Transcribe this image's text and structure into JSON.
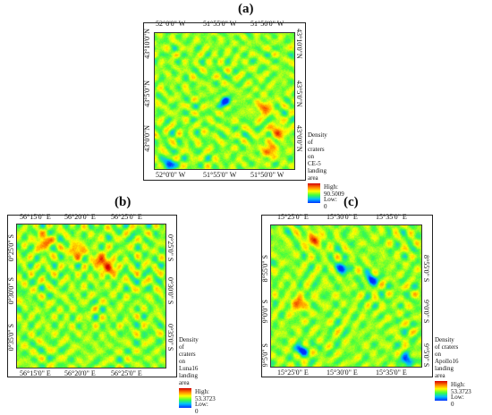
{
  "panels": [
    {
      "label": "(a)",
      "top_ticks": [
        "52°0'0\" W",
        "51°55'0\" W",
        "51°50'0\" W"
      ],
      "bottom_ticks": [
        "52°0'0\" W",
        "51°55'0\" W",
        "51°50'0\" W"
      ],
      "right_ticks": [
        "43°10'0\"N",
        "43°5'0\"N",
        "43°0'0\"N"
      ],
      "left_ticks": [
        "43°10'0\"N",
        "43°5'0\"N",
        "43°0'0\"N"
      ],
      "legend": {
        "title_line1": "Density of craters on",
        "title_line2": "CE-5 landing area",
        "high": "High: 90.5009",
        "low": "Low: 0"
      },
      "seed": 11,
      "hotspots": [
        {
          "u": 0.88,
          "v": 0.72
        },
        {
          "u": 0.82,
          "v": 0.86
        },
        {
          "u": 0.78,
          "v": 0.55
        }
      ],
      "bluespots": [
        {
          "u": 0.1,
          "v": 0.96
        },
        {
          "u": 0.5,
          "v": 0.5
        }
      ]
    },
    {
      "label": "(b)",
      "top_ticks": [
        "56°15'0\" E",
        "56°20'0\" E",
        "56°25'0\" E"
      ],
      "bottom_ticks": [
        "56°15'0\" E",
        "56°20'0\" E",
        "56°25'0\" E"
      ],
      "right_ticks": [
        "0°25'0\" S",
        "0°30'0\" S",
        "0°35'0\" S"
      ],
      "left_ticks": [
        "0°25'0\" S",
        "0°30'0\" S",
        "0°35'0\" S"
      ],
      "legend": {
        "title_line1": "Density of craters on",
        "title_line2": "Luna16 landing area",
        "high": "High: 53.3723",
        "low": "Low: 0"
      },
      "seed": 23,
      "hotspots": [
        {
          "u": 0.18,
          "v": 0.12
        },
        {
          "u": 0.56,
          "v": 0.25
        },
        {
          "u": 0.62,
          "v": 0.3
        },
        {
          "u": 0.4,
          "v": 0.18
        }
      ],
      "bluespots": []
    },
    {
      "label": "(c)",
      "top_ticks": [
        "15°25'0\" E",
        "15°30'0\" E",
        "15°35'0\" E"
      ],
      "bottom_ticks": [
        "15°25'0\" E",
        "15°30'0\" E",
        "15°35'0\" E"
      ],
      "right_ticks": [
        "8°55'0\" S",
        "9°0'0\" S",
        "9°5'0\" S"
      ],
      "left_ticks": [
        "8°55'0\" S",
        "9°0'0\" S",
        "9°5'0\" S"
      ],
      "legend": {
        "title_line1": "Density of craters on",
        "title_line2": "Apollo16 landing area",
        "high": "High: 53.3723",
        "low": "Low: 0"
      },
      "seed": 37,
      "hotspots": [
        {
          "u": 0.28,
          "v": 0.1
        },
        {
          "u": 0.18,
          "v": 0.55
        }
      ],
      "bluespots": [
        {
          "u": 0.47,
          "v": 0.3
        },
        {
          "u": 0.66,
          "v": 0.38
        },
        {
          "u": 0.9,
          "v": 0.95
        },
        {
          "u": 0.2,
          "v": 0.88
        }
      ]
    }
  ],
  "colors": {
    "ramp": [
      "#0030ff",
      "#00c0ff",
      "#40ff40",
      "#ffff00",
      "#ff8000",
      "#d40000"
    ]
  }
}
